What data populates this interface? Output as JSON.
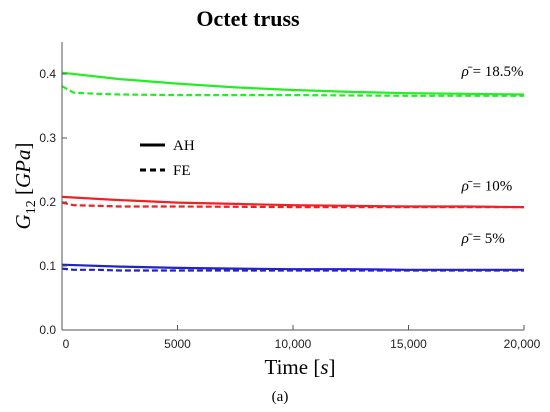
{
  "chart_data": {
    "type": "line",
    "title": "Octet truss",
    "xlabel": "Time [s]",
    "xlabel_parts": {
      "main": "Time ",
      "open": "[",
      "unit": "s",
      "close": "]"
    },
    "ylabel": "G12 [GPa]",
    "ylabel_parts": {
      "sym": "G",
      "sub": "12",
      "open": " [",
      "unit": "GPa",
      "close": "]"
    },
    "xlim": [
      0,
      20000
    ],
    "ylim": [
      0.0,
      0.45
    ],
    "x_ticks": [
      0,
      5000,
      10000,
      15000,
      20000
    ],
    "x_tick_labels": [
      "0",
      "5000",
      "10,000",
      "15,000",
      "20,000"
    ],
    "y_ticks": [
      0.0,
      0.1,
      0.2,
      0.3,
      0.4
    ],
    "y_tick_labels": [
      "0.0",
      "0.1",
      "0.2",
      "0.3",
      "0.4"
    ],
    "grid": false,
    "legend": {
      "placement": "upper-left-center",
      "entries": [
        {
          "label": "AH",
          "style": "solid"
        },
        {
          "label": "FE",
          "style": "dashed"
        }
      ]
    },
    "caption": "(a)",
    "series": [
      {
        "group": "18.5%",
        "method": "AH",
        "style": "solid",
        "color": "#22ee22",
        "x": [
          0,
          2500,
          5000,
          7500,
          10000,
          12500,
          15000,
          17500,
          20000
        ],
        "y": [
          0.402,
          0.392,
          0.385,
          0.379,
          0.375,
          0.372,
          0.37,
          0.369,
          0.368
        ]
      },
      {
        "group": "18.5%",
        "method": "FE",
        "style": "dashed",
        "color": "#22ee22",
        "x": [
          0,
          500,
          1500,
          2500,
          5000,
          10000,
          15000,
          20000
        ],
        "y": [
          0.381,
          0.371,
          0.369,
          0.368,
          0.367,
          0.367,
          0.366,
          0.366
        ]
      },
      {
        "group": "10%",
        "method": "AH",
        "style": "solid",
        "color": "#ee2222",
        "x": [
          0,
          2500,
          5000,
          7500,
          10000,
          12500,
          15000,
          17500,
          20000
        ],
        "y": [
          0.208,
          0.203,
          0.199,
          0.197,
          0.195,
          0.194,
          0.193,
          0.193,
          0.192
        ]
      },
      {
        "group": "10%",
        "method": "FE",
        "style": "dashed",
        "color": "#ee2222",
        "x": [
          0,
          500,
          1500,
          2500,
          5000,
          10000,
          15000,
          20000
        ],
        "y": [
          0.199,
          0.195,
          0.194,
          0.193,
          0.193,
          0.192,
          0.192,
          0.192
        ]
      },
      {
        "group": "5%",
        "method": "AH",
        "style": "solid",
        "color": "#2222cc",
        "x": [
          0,
          2500,
          5000,
          7500,
          10000,
          12500,
          15000,
          17500,
          20000
        ],
        "y": [
          0.102,
          0.099,
          0.097,
          0.096,
          0.095,
          0.095,
          0.094,
          0.094,
          0.094
        ]
      },
      {
        "group": "5%",
        "method": "FE",
        "style": "dashed",
        "color": "#2222cc",
        "x": [
          0,
          500,
          1500,
          2500,
          5000,
          10000,
          15000,
          20000
        ],
        "y": [
          0.096,
          0.094,
          0.094,
          0.093,
          0.093,
          0.093,
          0.093,
          0.093
        ]
      }
    ],
    "annotations": [
      {
        "sym": "ρ̄",
        "text": " = 18.5%",
        "at": [
          17300,
          0.397
        ]
      },
      {
        "sym": "ρ̄",
        "text": " = 10%",
        "at": [
          17300,
          0.218
        ]
      },
      {
        "sym": "ρ̄",
        "text": " = 5%",
        "at": [
          17300,
          0.136
        ]
      }
    ]
  }
}
